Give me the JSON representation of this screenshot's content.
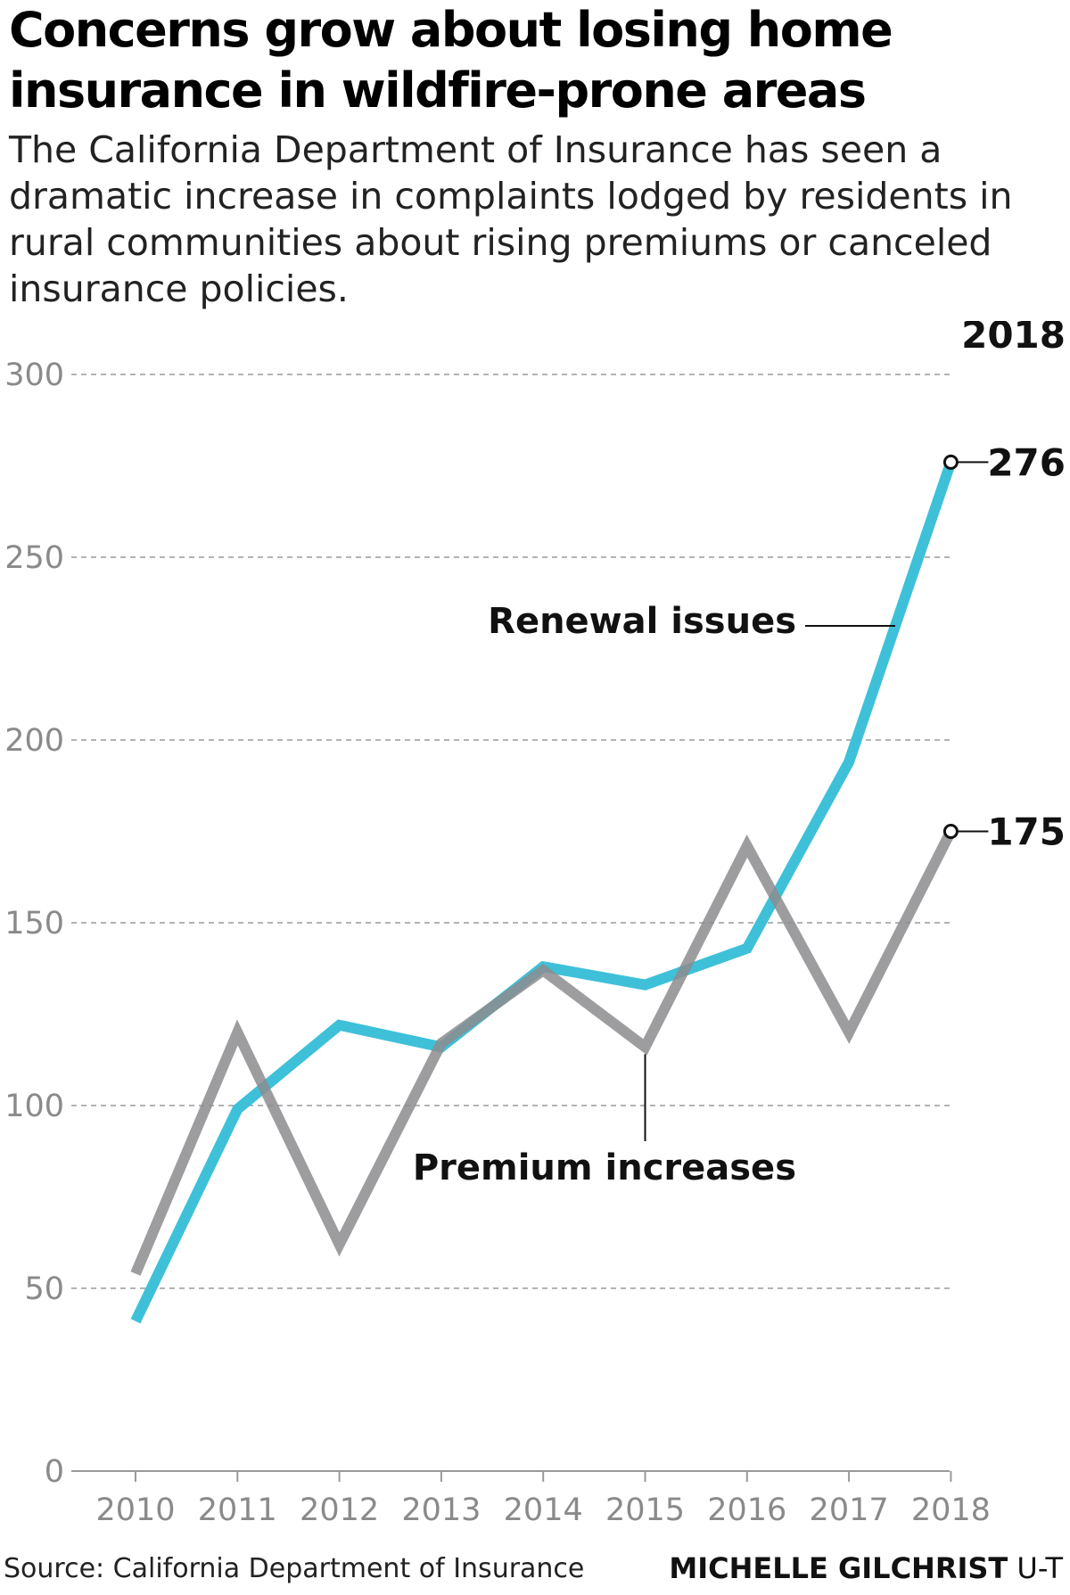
{
  "header": {
    "title": "Concerns grow about losing home insurance in wildfire-prone areas",
    "subtitle": "The California Department of Insurance has seen a dramatic increase in complaints lodged by residents in rural communities about rising premiums or canceled insurance policies."
  },
  "chart_data": {
    "type": "line",
    "title": "Concerns grow about losing home insurance in wildfire-prone areas",
    "xlabel": "",
    "ylabel": "",
    "x": [
      "2010",
      "2011",
      "2012",
      "2013",
      "2014",
      "2015",
      "2016",
      "2017",
      "2018"
    ],
    "ylim": [
      0,
      300
    ],
    "yticks": [
      0,
      50,
      100,
      150,
      200,
      250,
      300
    ],
    "grid": "horizontal dashed",
    "series": [
      {
        "name": "Renewal issues",
        "color": "#3ec1d8",
        "values": [
          41,
          99,
          122,
          116,
          138,
          133,
          143,
          194,
          276
        ]
      },
      {
        "name": "Premium increases",
        "color": "#8c8c8e",
        "values": [
          54,
          120,
          62,
          117,
          137,
          116,
          171,
          120,
          175
        ]
      }
    ],
    "end_year_label": "2018",
    "end_values": [
      "276",
      "175"
    ]
  },
  "footer": {
    "source": "Source: California Department of Insurance",
    "credit_name": "MICHELLE GILCHRIST",
    "credit_org": "U-T"
  }
}
